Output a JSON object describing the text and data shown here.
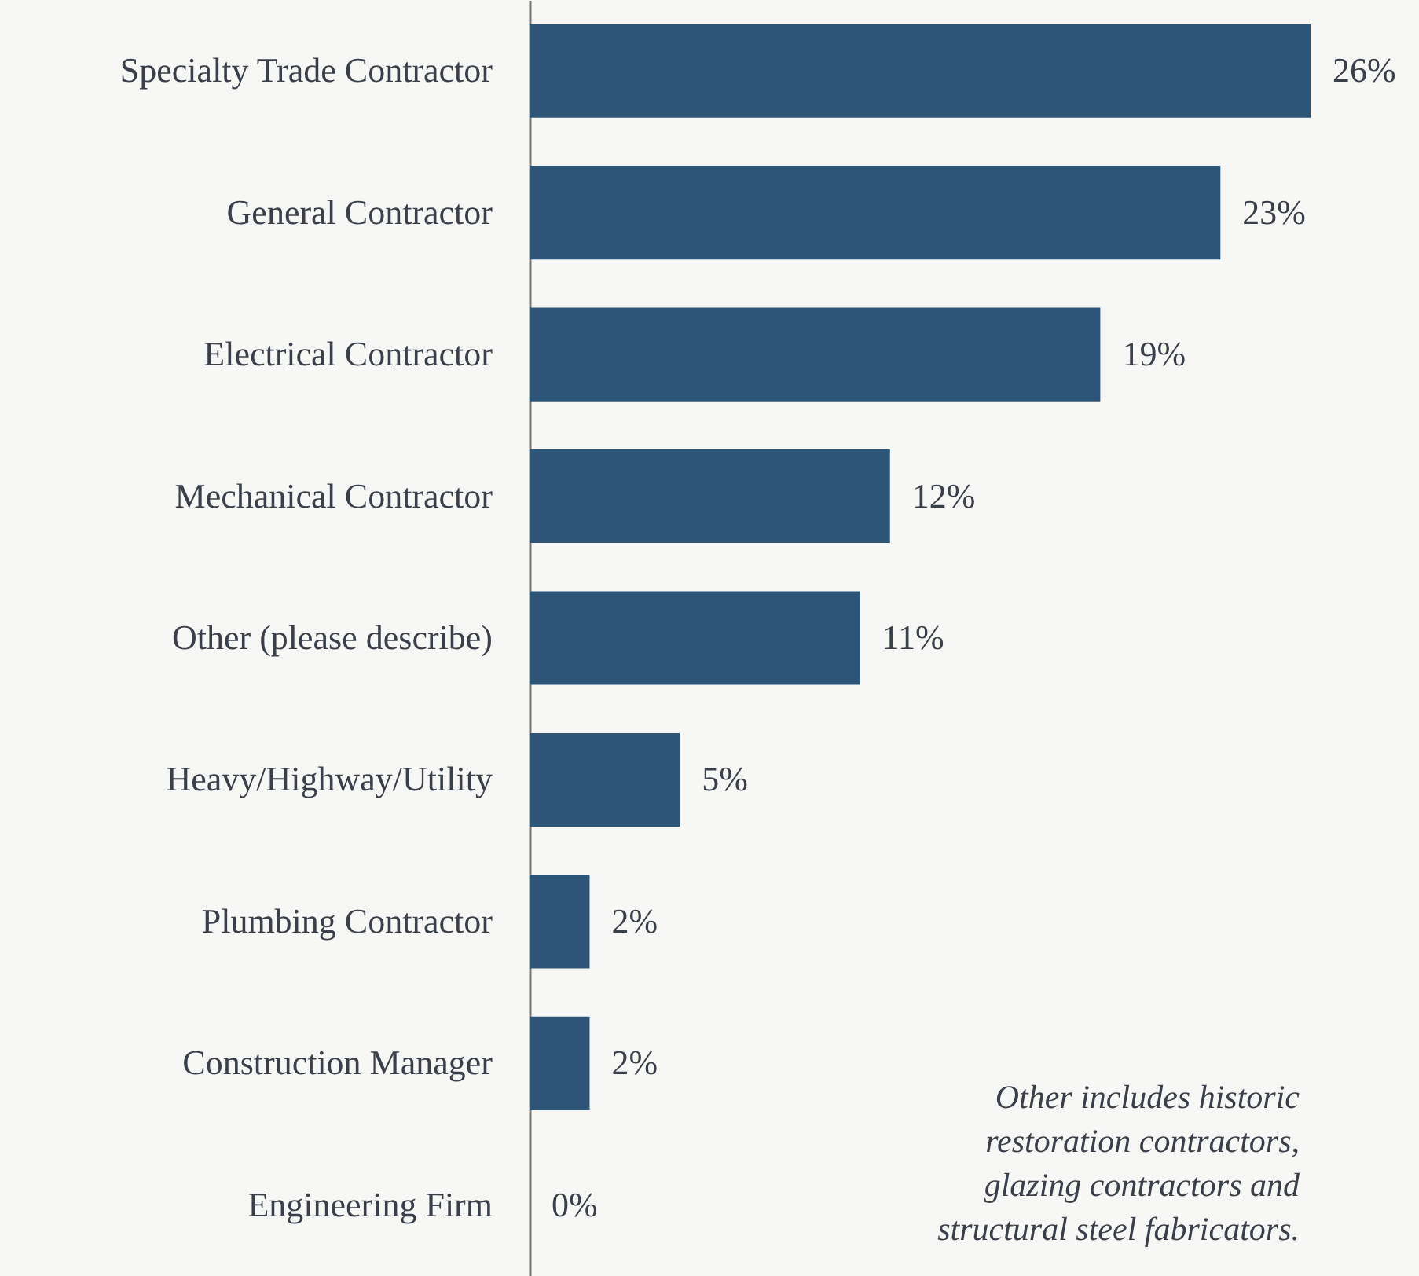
{
  "chart_data": {
    "type": "bar",
    "orientation": "horizontal",
    "categories": [
      "Specialty Trade Contractor",
      "General Contractor",
      "Electrical Contractor",
      "Mechanical Contractor",
      "Other (please describe)",
      "Heavy/Highway/Utility",
      "Plumbing Contractor",
      "Construction Manager",
      "Engineering Firm"
    ],
    "values": [
      26,
      23,
      19,
      12,
      11,
      5,
      2,
      2,
      0
    ],
    "value_labels": [
      "26%",
      "23%",
      "19%",
      "12%",
      "11%",
      "5%",
      "2%",
      "2%",
      "0%"
    ],
    "color": "#2c5577",
    "annotations": [
      "Other includes historic restoration contractors, glazing contractors and structural steel fabricators."
    ],
    "grid": false
  }
}
